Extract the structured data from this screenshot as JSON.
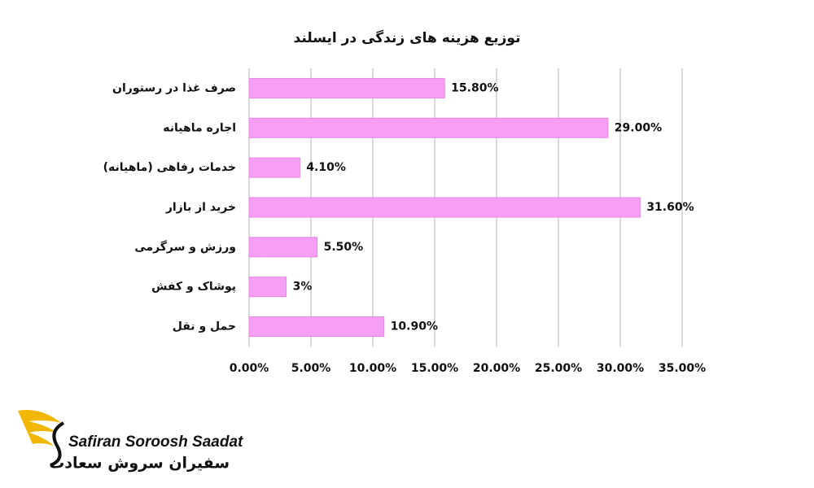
{
  "chart_data": {
    "type": "bar",
    "orientation": "horizontal",
    "title": "توزیع هزینه های زندگی در ایسلند",
    "categories": [
      "صرف غذا در رستوران",
      "اجاره ماهیانه",
      "خدمات رفاهی (ماهیانه)",
      "خرید از بازار",
      "ورزش و سرگرمی",
      "پوشاک و کفش",
      "حمل و نقل"
    ],
    "values": [
      15.8,
      29.0,
      4.1,
      31.6,
      5.5,
      3,
      10.9
    ],
    "value_labels": [
      "15.80%",
      "29.00%",
      "4.10%",
      "31.60%",
      "5.50%",
      "3%",
      "10.90%"
    ],
    "color": "#f79ef5",
    "xlim": [
      0,
      35
    ],
    "xticks": [
      {
        "value": 0,
        "label": "0.00%"
      },
      {
        "value": 5,
        "label": "5.00%"
      },
      {
        "value": 10,
        "label": "10.00%"
      },
      {
        "value": 15,
        "label": "15.00%"
      },
      {
        "value": 20,
        "label": "20.00%"
      },
      {
        "value": 25,
        "label": "25.00%"
      },
      {
        "value": 30,
        "label": "30.00%"
      },
      {
        "value": 35,
        "label": "35.00%"
      }
    ],
    "grid": true
  },
  "logo": {
    "latin": "Safiran Soroosh Saadat",
    "persian": "سفیران سروش سعادت"
  }
}
